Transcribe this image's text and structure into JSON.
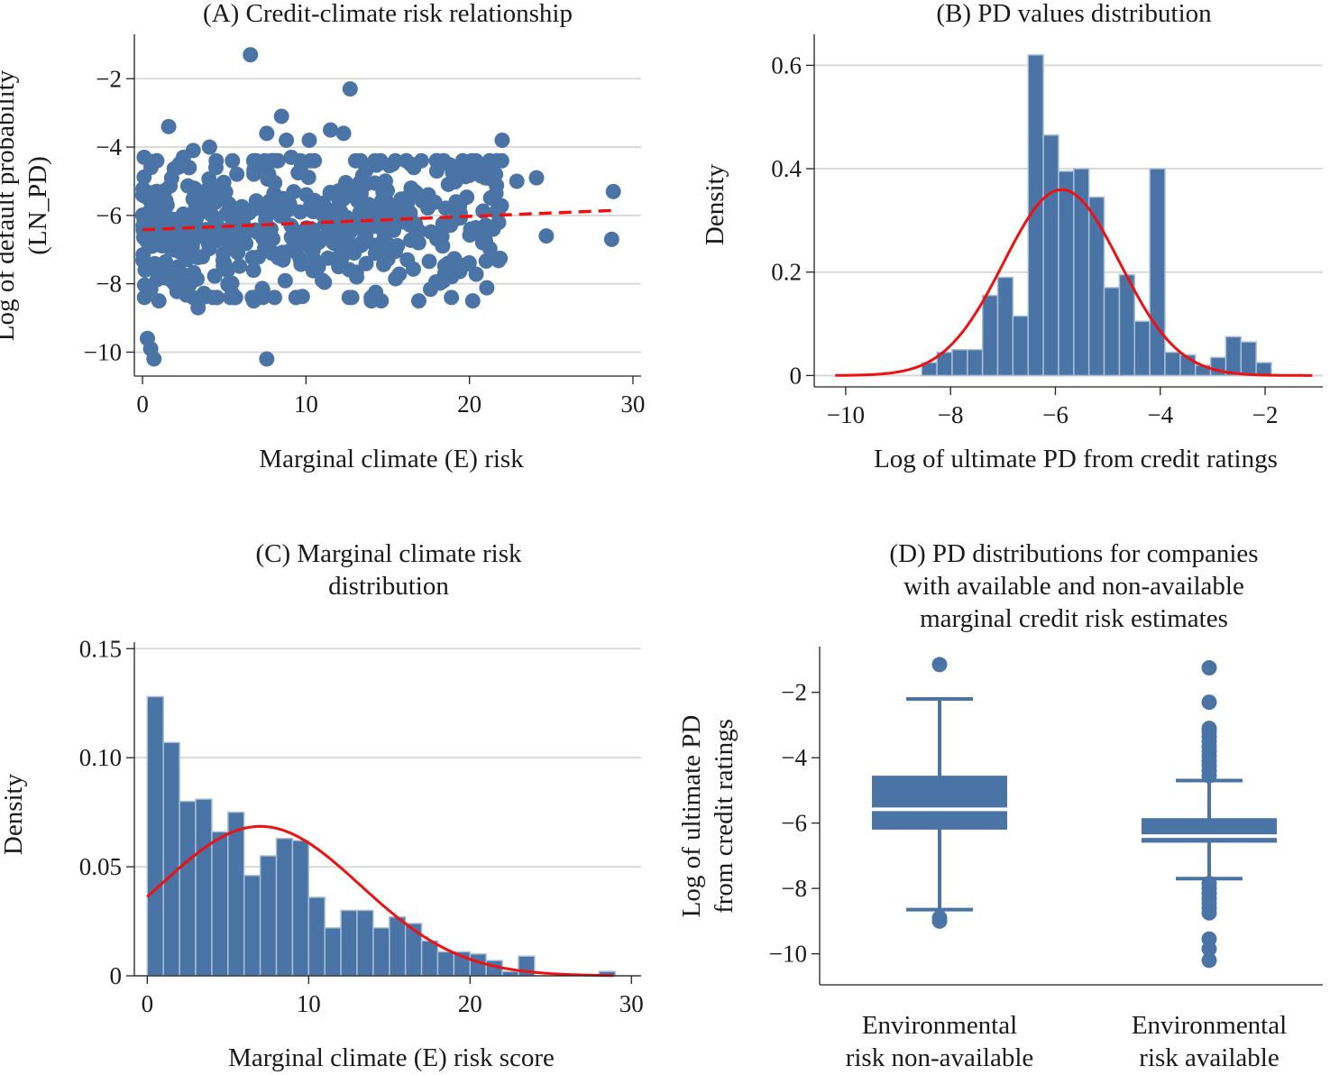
{
  "colors": {
    "bar": "#4a74a6",
    "bar_edge": "#a9bfd6",
    "marker": "#4a74a6",
    "fit": "#ee1111",
    "grid": "#d9d9d9",
    "axis": "#222222"
  },
  "chart_data": [
    {
      "type": "scatter",
      "title": "(A) Credit-climate risk relationship",
      "xlabel": "Marginal climate (E) risk",
      "ylabel": [
        "Log of default probability",
        "(LN_PD)"
      ],
      "xlim": [
        -0.5,
        30.5
      ],
      "ylim": [
        -10.7,
        -0.7
      ],
      "xticks": [
        0,
        10,
        20,
        30
      ],
      "yticks": [
        -2,
        -4,
        -6,
        -8,
        -10
      ],
      "grid": "horizontal",
      "points": [
        [
          6.6,
          -1.3
        ],
        [
          12.7,
          -2.3
        ],
        [
          8.5,
          -3.1
        ],
        [
          1.6,
          -3.4
        ],
        [
          7.6,
          -3.6
        ],
        [
          8.8,
          -3.8
        ],
        [
          10.2,
          -3.8
        ],
        [
          11.5,
          -3.5
        ],
        [
          12.3,
          -3.6
        ],
        [
          22.0,
          -3.8
        ],
        [
          3.1,
          -4.1
        ],
        [
          4.1,
          -4.0
        ],
        [
          2.5,
          -4.3
        ],
        [
          0.1,
          -4.3
        ],
        [
          5.5,
          -4.4
        ],
        [
          6.8,
          -4.4
        ],
        [
          7.9,
          -4.4
        ],
        [
          9.1,
          -4.3
        ],
        [
          14.3,
          -4.5
        ],
        [
          15.3,
          -4.5
        ],
        [
          16.6,
          -4.6
        ],
        [
          18.0,
          -4.7
        ],
        [
          19.5,
          -4.5
        ],
        [
          21.6,
          -4.8
        ],
        [
          22.9,
          -5.0
        ],
        [
          24.1,
          -4.9
        ],
        [
          28.8,
          -5.3
        ],
        [
          24.7,
          -6.6
        ],
        [
          28.7,
          -6.7
        ],
        [
          0.3,
          -9.6
        ],
        [
          0.5,
          -9.9
        ],
        [
          0.7,
          -10.2
        ],
        [
          7.6,
          -10.2
        ],
        [
          3.4,
          -8.7
        ],
        [
          12.8,
          -8.4
        ],
        [
          14.0,
          -8.5
        ],
        [
          14.6,
          -8.5
        ],
        [
          16.9,
          -8.5
        ],
        [
          20.2,
          -8.5
        ],
        [
          13.1,
          -7.8
        ],
        [
          1.0,
          -8.5
        ],
        [
          2.6,
          -8.1
        ],
        [
          5.5,
          -8.3
        ],
        [
          9.4,
          -8.4
        ],
        [
          6.8,
          -8.5
        ],
        [
          11.0,
          -7.9
        ],
        [
          18.7,
          -7.4
        ],
        [
          16.2,
          -7.3
        ]
      ],
      "dense_cloud": {
        "x_range": [
          0,
          22
        ],
        "y_center": -6.4,
        "y_spread": 1.1,
        "n": 520
      },
      "fit_line": {
        "x": [
          0,
          29
        ],
        "y": [
          -6.42,
          -5.85
        ],
        "style": "dashed"
      }
    },
    {
      "type": "bar",
      "subtype": "histogram",
      "title": "(B) PD values distribution",
      "xlabel": "Log of ultimate PD from credit ratings",
      "ylabel": "Density",
      "xlim": [
        -10.6,
        -0.9
      ],
      "ylim": [
        -0.022,
        0.66
      ],
      "xticks": [
        -10,
        -8,
        -6,
        -4,
        -2
      ],
      "yticks": [
        0,
        0.2,
        0.4,
        0.6
      ],
      "ytick_labels": [
        "0",
        "0.2",
        "0.4",
        "0.6"
      ],
      "grid": "horizontal",
      "bin_start": -8.55,
      "bin_width": 0.29,
      "values": [
        0.025,
        0.045,
        0.05,
        0.05,
        0.155,
        0.19,
        0.115,
        0.62,
        0.465,
        0.395,
        0.4,
        0.345,
        0.17,
        0.195,
        0.105,
        0.4,
        0.045,
        0.04,
        0.02,
        0.035,
        0.075,
        0.065,
        0.025
      ],
      "density_curve": {
        "mean": -5.88,
        "sd": 1.11,
        "x_range": [
          -10.2,
          -1.1
        ]
      },
      "trailing_bars": [
        [
          -1.1,
          0.004
        ]
      ]
    },
    {
      "type": "bar",
      "subtype": "histogram",
      "title": [
        "(C) Marginal climate risk",
        "distribution"
      ],
      "xlabel": "Marginal climate (E) risk score",
      "ylabel": "Density",
      "xlim": [
        -0.8,
        30.6
      ],
      "ylim": [
        0,
        0.153
      ],
      "xticks": [
        0,
        10,
        20,
        30
      ],
      "yticks": [
        0,
        0.05,
        0.1,
        0.15
      ],
      "ytick_labels": [
        "0",
        "0.05",
        "0.10",
        "0.15"
      ],
      "grid": "horizontal",
      "bin_start": 0,
      "bin_width": 1.0,
      "values": [
        0.128,
        0.107,
        0.08,
        0.081,
        0.066,
        0.075,
        0.046,
        0.055,
        0.063,
        0.062,
        0.036,
        0.022,
        0.03,
        0.03,
        0.022,
        0.027,
        0.024,
        0.016,
        0.011,
        0.011,
        0.01,
        0.007,
        0.002,
        0.009,
        0,
        0,
        0,
        0,
        0.002
      ],
      "density_curve": {
        "mean": 7.0,
        "sd": 6.2,
        "peak": 0.0685,
        "x_range": [
          0,
          28.9
        ]
      }
    },
    {
      "type": "box",
      "title": [
        "(D) PD distributions for companies",
        "with available and non-available",
        "marginal credit risk estimates"
      ],
      "ylabel": [
        "Log of ultimate PD",
        "from credit ratings"
      ],
      "ylim": [
        -10.95,
        -0.6
      ],
      "yticks": [
        -2,
        -4,
        -6,
        -8,
        -10
      ],
      "categories": [
        [
          "Environmental",
          "risk non-available"
        ],
        [
          "Environmental",
          "risk available"
        ]
      ],
      "boxes": [
        {
          "q1": -6.2,
          "median": -5.58,
          "q3": -4.55,
          "whisker_low": -8.65,
          "whisker_high": -2.2,
          "outliers": [
            -1.15,
            -8.9,
            -9.0
          ]
        },
        {
          "q1": -6.6,
          "median": -6.4,
          "q3": -5.85,
          "whisker_low": -7.7,
          "whisker_high": -4.7,
          "outliers": [
            -1.25,
            -2.3,
            -3.1,
            -3.2,
            -3.35,
            -3.5,
            -3.65,
            -3.8,
            -3.95,
            -4.1,
            -4.25,
            -4.4,
            -4.55,
            -7.85,
            -8.0,
            -8.15,
            -8.3,
            -8.45,
            -8.6,
            -8.75,
            -9.55,
            -9.85,
            -10.2
          ]
        }
      ]
    }
  ]
}
